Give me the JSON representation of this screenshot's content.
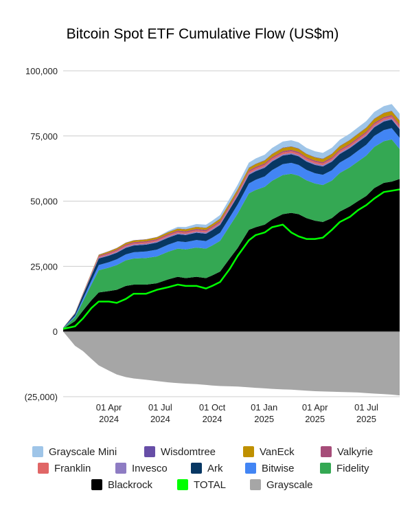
{
  "chart_data": {
    "type": "area",
    "title": "Bitcoin Spot ETF Cumulative Flow (US$m)",
    "stacked": true,
    "y_ticks": [
      "100,000",
      "75,000",
      "50,000",
      "25,000",
      "0",
      "(25,000)"
    ],
    "y_tick_values": [
      100000,
      75000,
      50000,
      25000,
      0,
      -25000
    ],
    "ylim": [
      -25000,
      100000
    ],
    "x_ticks": [
      {
        "date": "2024-04-01",
        "line1": "01 Apr",
        "line2": "2024"
      },
      {
        "date": "2024-07-01",
        "line1": "01 Jul",
        "line2": "2024"
      },
      {
        "date": "2024-10-01",
        "line1": "01 Oct",
        "line2": "2024"
      },
      {
        "date": "2025-01-01",
        "line1": "01 Jan",
        "line2": "2025"
      },
      {
        "date": "2025-04-01",
        "line1": "01 Apr",
        "line2": "2025"
      },
      {
        "date": "2025-07-01",
        "line1": "01 Jul",
        "line2": "2025"
      }
    ],
    "x_range": [
      "2024-01-11",
      "2025-08-29"
    ],
    "grid": true,
    "legend_position": "bottom",
    "x": [
      "2024-01-11",
      "2024-02-01",
      "2024-02-15",
      "2024-03-01",
      "2024-03-14",
      "2024-04-01",
      "2024-04-15",
      "2024-05-01",
      "2024-05-15",
      "2024-06-06",
      "2024-06-25",
      "2024-07-15",
      "2024-08-01",
      "2024-08-15",
      "2024-09-03",
      "2024-09-20",
      "2024-10-01",
      "2024-10-15",
      "2024-11-01",
      "2024-11-15",
      "2024-12-05",
      "2024-12-17",
      "2025-01-02",
      "2025-01-15",
      "2025-02-03",
      "2025-02-18",
      "2025-03-03",
      "2025-03-17",
      "2025-04-01",
      "2025-04-15",
      "2025-05-01",
      "2025-05-15",
      "2025-06-02",
      "2025-06-16",
      "2025-07-01",
      "2025-07-15",
      "2025-08-01",
      "2025-08-15",
      "2025-08-29"
    ],
    "series": [
      {
        "name": "Grayscale",
        "color": "#a6a6a6",
        "values": [
          0,
          -5500,
          -7500,
          -10500,
          -13000,
          -15000,
          -16500,
          -17500,
          -18000,
          -18500,
          -19000,
          -19500,
          -19800,
          -20000,
          -20200,
          -20500,
          -20700,
          -20900,
          -21000,
          -21100,
          -21400,
          -21600,
          -21800,
          -22000,
          -22200,
          -22300,
          -22500,
          -22700,
          -22900,
          -23000,
          -23100,
          -23200,
          -23300,
          -23400,
          -23600,
          -23800,
          -24000,
          -24200,
          -24500
        ]
      },
      {
        "name": "Blackrock",
        "color": "#000000",
        "values": [
          1000,
          4000,
          8000,
          12000,
          15000,
          15500,
          16000,
          17500,
          18000,
          18000,
          18500,
          20000,
          21000,
          20500,
          21000,
          20500,
          21500,
          23000,
          28000,
          32000,
          39000,
          40000,
          41000,
          43000,
          45000,
          45500,
          45000,
          43500,
          42500,
          42000,
          43500,
          46000,
          48000,
          50000,
          52000,
          55000,
          57000,
          57500,
          58500
        ]
      },
      {
        "name": "Fidelity",
        "color": "#34a853",
        "values": [
          200,
          1500,
          3500,
          6000,
          8500,
          9000,
          9500,
          9800,
          10000,
          10200,
          10300,
          10600,
          10800,
          11000,
          11200,
          11300,
          11500,
          11800,
          12500,
          13200,
          14000,
          14300,
          14500,
          14800,
          15000,
          15000,
          14800,
          14500,
          14300,
          14200,
          14400,
          14800,
          15000,
          15200,
          15500,
          15800,
          16000,
          16200,
          11500
        ]
      },
      {
        "name": "Bitwise",
        "color": "#4285f4",
        "values": [
          100,
          500,
          1000,
          1500,
          2000,
          2100,
          2200,
          2300,
          2400,
          2500,
          2600,
          2700,
          2800,
          2800,
          2900,
          2900,
          3000,
          3100,
          3300,
          3500,
          3800,
          3900,
          4000,
          4100,
          4200,
          4200,
          4100,
          4000,
          3900,
          3900,
          3950,
          4000,
          4050,
          4100,
          4150,
          4200,
          4250,
          4300,
          4300
        ]
      },
      {
        "name": "Ark",
        "color": "#073763",
        "values": [
          100,
          800,
          1500,
          2000,
          2500,
          2500,
          2500,
          2500,
          2600,
          2600,
          2700,
          2700,
          2700,
          2700,
          2800,
          2800,
          2900,
          3000,
          3100,
          3200,
          3300,
          3300,
          3300,
          3300,
          3300,
          3300,
          3300,
          3200,
          3200,
          3200,
          3300,
          3300,
          3300,
          3300,
          3300,
          3300,
          3300,
          3300,
          3300
        ]
      },
      {
        "name": "Invesco",
        "color": "#8e7cc3",
        "values": [
          20,
          100,
          200,
          300,
          350,
          350,
          380,
          400,
          400,
          420,
          420,
          430,
          430,
          440,
          440,
          450,
          450,
          460,
          470,
          480,
          500,
          500,
          500,
          500,
          500,
          500,
          500,
          490,
          490,
          490,
          500,
          500,
          500,
          500,
          500,
          500,
          500,
          500,
          500
        ]
      },
      {
        "name": "Franklin",
        "color": "#e06666",
        "values": [
          20,
          100,
          200,
          300,
          350,
          400,
          420,
          450,
          450,
          460,
          480,
          490,
          500,
          500,
          520,
          520,
          540,
          560,
          580,
          600,
          620,
          630,
          640,
          650,
          660,
          660,
          660,
          650,
          650,
          650,
          660,
          670,
          680,
          690,
          700,
          700,
          700,
          700,
          700
        ]
      },
      {
        "name": "Valkyrie",
        "color": "#a64d79",
        "values": [
          10,
          80,
          150,
          250,
          350,
          400,
          420,
          450,
          450,
          460,
          470,
          480,
          480,
          490,
          490,
          500,
          500,
          510,
          520,
          530,
          540,
          550,
          550,
          550,
          550,
          550,
          550,
          540,
          540,
          540,
          550,
          550,
          550,
          550,
          550,
          550,
          550,
          550,
          550
        ]
      },
      {
        "name": "VanEck",
        "color": "#bf9000",
        "values": [
          10,
          60,
          150,
          250,
          350,
          500,
          550,
          600,
          620,
          650,
          680,
          700,
          720,
          740,
          760,
          780,
          800,
          850,
          900,
          950,
          1000,
          1050,
          1100,
          1150,
          1200,
          1200,
          1200,
          1200,
          1200,
          1200,
          1250,
          1300,
          1350,
          1400,
          1450,
          1500,
          1500,
          1500,
          1500
        ]
      },
      {
        "name": "Wisdomtree",
        "color": "#674ea7",
        "values": [
          5,
          30,
          50,
          70,
          90,
          100,
          100,
          100,
          100,
          100,
          100,
          100,
          100,
          100,
          100,
          100,
          110,
          120,
          130,
          140,
          150,
          150,
          150,
          150,
          150,
          150,
          150,
          150,
          150,
          150,
          150,
          150,
          150,
          150,
          150,
          150,
          150,
          150,
          150
        ]
      },
      {
        "name": "Grayscale Mini",
        "color": "#9fc5e8",
        "values": [
          0,
          0,
          0,
          0,
          0,
          0,
          0,
          0,
          0,
          0,
          0,
          400,
          600,
          800,
          1000,
          1100,
          1200,
          1300,
          1500,
          1700,
          1900,
          2000,
          2100,
          2200,
          2300,
          2300,
          2300,
          2200,
          2200,
          2200,
          2250,
          2300,
          2350,
          2400,
          2450,
          2500,
          2500,
          2550,
          2600
        ]
      }
    ],
    "total_series": {
      "name": "TOTAL",
      "color": "#00ff00",
      "values": [
        1000,
        2000,
        5000,
        9000,
        11500,
        11500,
        11000,
        12500,
        14500,
        14500,
        16000,
        17000,
        18000,
        17500,
        17500,
        16500,
        17500,
        19000,
        24000,
        29000,
        35000,
        37000,
        38000,
        40000,
        41000,
        38000,
        36500,
        35500,
        35500,
        36000,
        39000,
        42000,
        44000,
        46500,
        48500,
        51000,
        53500,
        54000,
        54500
      ]
    }
  },
  "legend": [
    {
      "label": "Grayscale Mini",
      "color": "#9fc5e8"
    },
    {
      "label": "Wisdomtree",
      "color": "#674ea7"
    },
    {
      "label": "VanEck",
      "color": "#bf9000"
    },
    {
      "label": "Valkyrie",
      "color": "#a64d79"
    },
    {
      "label": "Franklin",
      "color": "#e06666"
    },
    {
      "label": "Invesco",
      "color": "#8e7cc3"
    },
    {
      "label": "Ark",
      "color": "#073763"
    },
    {
      "label": "Bitwise",
      "color": "#4285f4"
    },
    {
      "label": "Fidelity",
      "color": "#34a853"
    },
    {
      "label": "Blackrock",
      "color": "#000000"
    },
    {
      "label": "TOTAL",
      "color": "#00ff00"
    },
    {
      "label": "Grayscale",
      "color": "#a6a6a6"
    }
  ]
}
